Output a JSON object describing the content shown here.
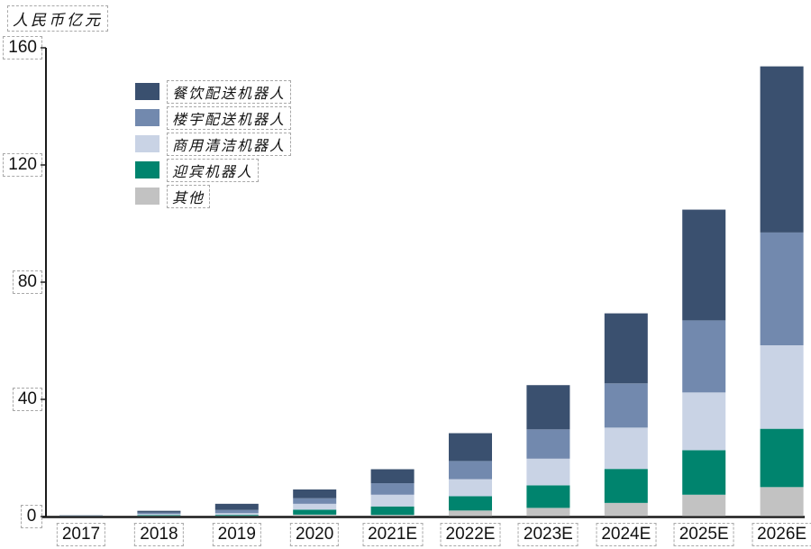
{
  "chart_data": {
    "type": "bar",
    "stacked": true,
    "title": "人民币亿元",
    "xlabel": "",
    "ylabel": "人民币亿元",
    "categories": [
      "2017",
      "2018",
      "2019",
      "2020",
      "2021E",
      "2022E",
      "2023E",
      "2024E",
      "2025E",
      "2026E"
    ],
    "series": [
      {
        "name": "餐饮配送机器人",
        "color": "#3a506f",
        "values": [
          0.1,
          0.6,
          2.1,
          3.0,
          4.8,
          9.5,
          15.1,
          23.9,
          37.8,
          56.7
        ]
      },
      {
        "name": "楼宇配送机器人",
        "color": "#7289ae",
        "values": [
          0.05,
          0.5,
          1.1,
          1.9,
          3.9,
          6.2,
          10.0,
          15.1,
          24.6,
          38.5
        ]
      },
      {
        "name": "商用清洁机器人",
        "color": "#c9d3e5",
        "values": [
          0.05,
          0.35,
          0.6,
          2.0,
          4.0,
          5.8,
          9.1,
          14.1,
          19.7,
          28.5
        ]
      },
      {
        "name": "迎宾机器人",
        "color": "#00846e",
        "values": [
          0.03,
          0.25,
          0.3,
          1.7,
          2.9,
          4.9,
          7.7,
          11.6,
          15.2,
          19.9
        ]
      },
      {
        "name": "其他",
        "color": "#c2c2c2",
        "values": [
          0.02,
          0.1,
          0.1,
          0.5,
          0.4,
          1.9,
          2.8,
          4.5,
          7.3,
          9.9
        ]
      }
    ],
    "totals": [
      0.25,
      1.8,
      4.2,
      9.1,
      16.0,
      28.3,
      44.7,
      69.2,
      104.6,
      153.5
    ],
    "yticks": [
      0,
      40,
      80,
      120,
      160
    ],
    "ylim": [
      0,
      160
    ],
    "grid": false,
    "legend_position": "upper-left-inside",
    "axis_color": "#1a1a1a",
    "label_box_style": "dashed"
  }
}
